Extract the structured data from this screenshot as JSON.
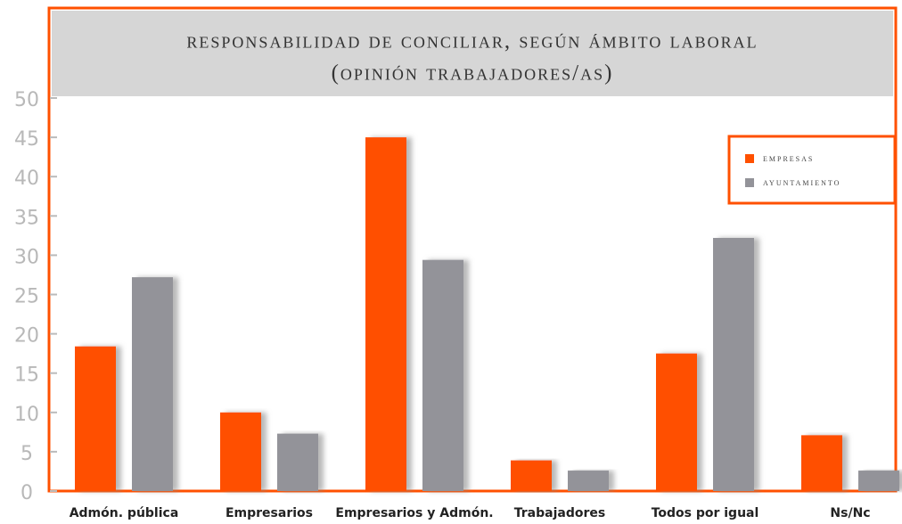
{
  "chart_data": {
    "type": "bar",
    "title": "responsabilidad de conciliar, según ámbito laboral",
    "subtitle": "(opinión trabajadores/as)",
    "categories": [
      "Admón. pública",
      "Empresarios",
      "Empresarios y Admón.",
      "Trabajadores",
      "Todos por igual",
      "Ns/Nc"
    ],
    "series": [
      {
        "name": "empresas",
        "color": "#ff5000",
        "values": [
          18.4,
          10.0,
          45.0,
          3.9,
          17.5,
          7.1
        ]
      },
      {
        "name": "ayuntamiento",
        "color": "#939399",
        "values": [
          27.2,
          7.3,
          29.4,
          2.6,
          32.2,
          2.6
        ]
      }
    ],
    "ylim": [
      0,
      50
    ],
    "yticks": [
      0,
      5,
      10,
      15,
      20,
      25,
      30,
      35,
      40,
      45,
      50
    ],
    "legend": "upper right"
  }
}
